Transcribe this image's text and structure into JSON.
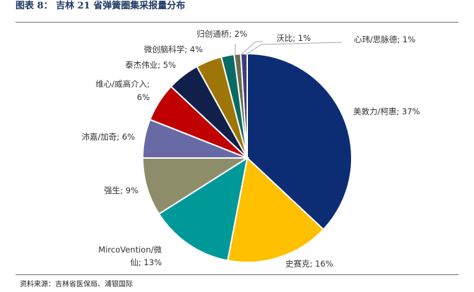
{
  "figure": {
    "title": "图表 8： 吉林 21 省弹簧圈集采报量分布",
    "source": "资料来源：吉林省医保局、浦银国际"
  },
  "chart_data": {
    "type": "pie",
    "title": "",
    "slices": [
      {
        "name": "美敦力/柯惠",
        "value": 37,
        "color": "#0c2c73",
        "label": "美敦力/柯惠; 37%"
      },
      {
        "name": "史赛克",
        "value": 16,
        "color": "#ffc000",
        "label": "史赛克; 16%"
      },
      {
        "name": "MircoVention/微仙",
        "value": 13,
        "color": "#00999a",
        "label_lines": [
          "MircoVention/微",
          "仙; 13%"
        ]
      },
      {
        "name": "强生",
        "value": 9,
        "color": "#8e8d6a",
        "label": "强生; 9%"
      },
      {
        "name": "沛嘉/加奇",
        "value": 6,
        "color": "#676aa5",
        "label": "沛嘉/加奇; 6%"
      },
      {
        "name": "维心/威高介入",
        "value": 6,
        "color": "#c00000",
        "label_lines": [
          "维心/威高介入;",
          "6%"
        ]
      },
      {
        "name": "泰杰伟业",
        "value": 5,
        "color": "#10204a",
        "label": "泰杰伟业; 5%"
      },
      {
        "name": "微创脑科学",
        "value": 4,
        "color": "#9e7607",
        "label": "微创脑科学; 4%"
      },
      {
        "name": "归创通桥",
        "value": 2,
        "color": "#0a6a64",
        "label": "归创通桥; 2%"
      },
      {
        "name": "沃比",
        "value": 1,
        "color": "#6b6b4e",
        "label": "沃比; 1%"
      },
      {
        "name": "心玮/思脉德",
        "value": 1,
        "color": "#3d3f7a",
        "label": "心玮/思脉德; 1%"
      }
    ]
  }
}
